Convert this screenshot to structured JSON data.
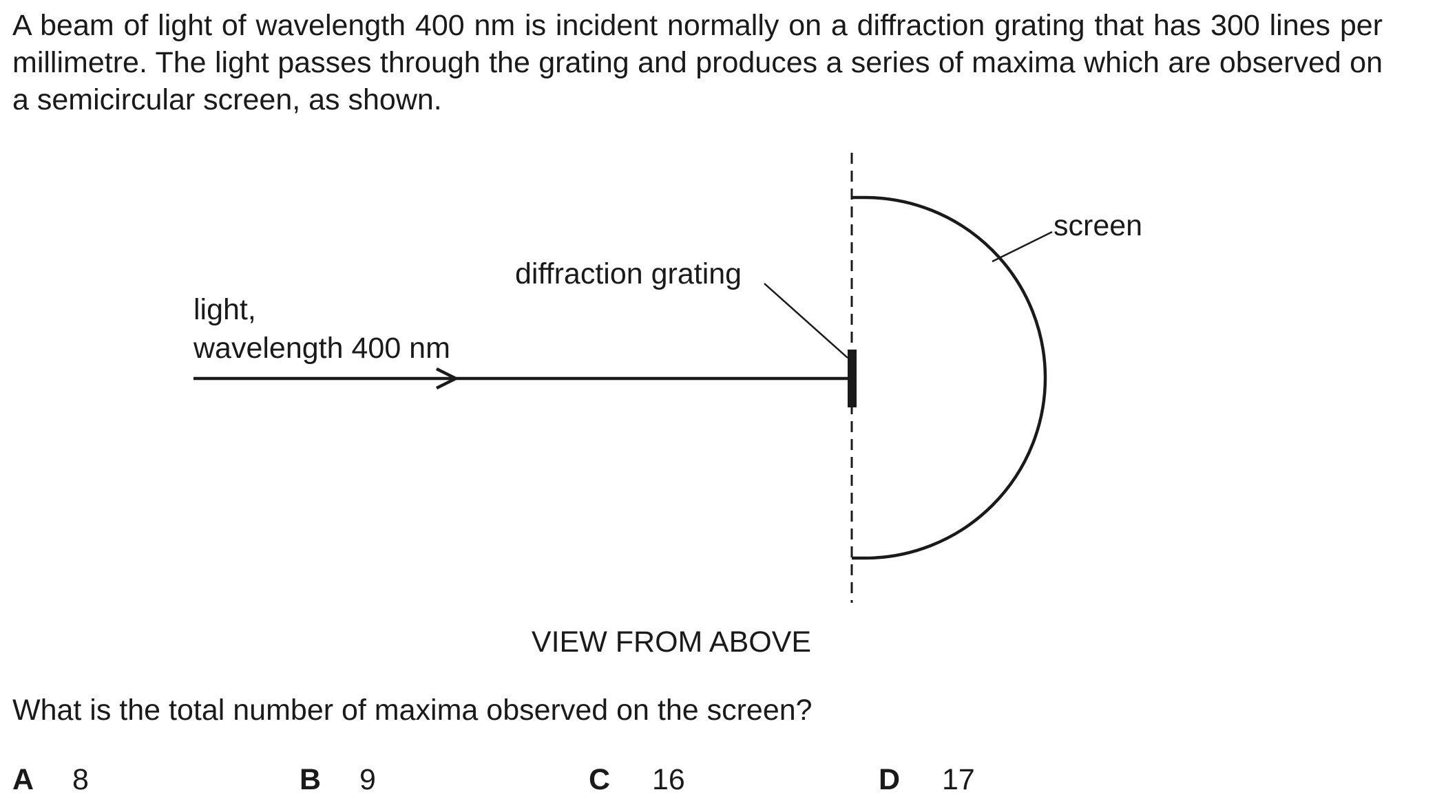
{
  "question": {
    "intro": "A beam of light of wavelength 400 nm is incident normally on a diffraction grating that has 300 lines per millimetre. The light passes through the grating and produces a series of maxima which are observed on a semicircular screen, as shown.",
    "prompt": "What is the total number of maxima observed on the screen?"
  },
  "diagram": {
    "light_label_line1": "light,",
    "light_label_line2": "wavelength 400 nm",
    "grating_label": "diffraction grating",
    "screen_label": "screen",
    "caption": "VIEW FROM ABOVE"
  },
  "options": [
    {
      "letter": "A",
      "value": "8"
    },
    {
      "letter": "B",
      "value": "9"
    },
    {
      "letter": "C",
      "value": "16"
    },
    {
      "letter": "D",
      "value": "17"
    }
  ]
}
